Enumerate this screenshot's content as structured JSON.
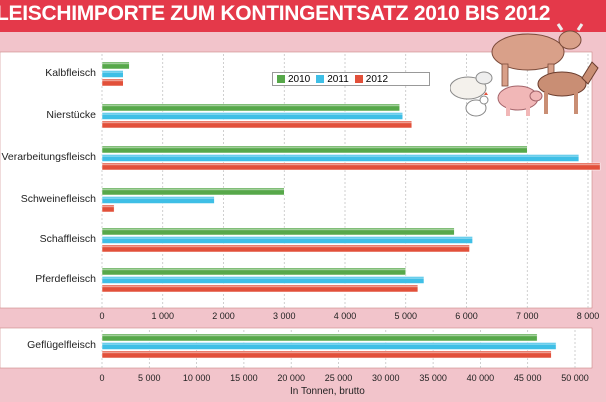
{
  "title": "LEISCHIMPORTE ZUM KONTINGENTSATZ 2010 BIS 2012",
  "unit_label": "In Tonnen, brutto",
  "colors": {
    "title_bg": "#e4394a",
    "page_bg": "#f2c4cb",
    "panel_bg": "#ffffff",
    "s2010": "#57a84a",
    "s2011": "#3fbfe6",
    "s2012": "#e2503a"
  },
  "icons": [
    "cow-icon",
    "sheep-icon",
    "pig-icon",
    "horse-icon",
    "chicken-icon"
  ],
  "chart_data": [
    {
      "type": "bar",
      "orientation": "horizontal",
      "categories": [
        "Kalbfleisch",
        "Nierstücke",
        "Verarbeitungsfleisch",
        "Schweinefleisch",
        "Schaffleisch",
        "Pferdefleisch"
      ],
      "series": [
        {
          "name": "2010",
          "values": [
            450,
            4900,
            7000,
            3000,
            5800,
            5000
          ]
        },
        {
          "name": "2011",
          "values": [
            350,
            4950,
            7850,
            1850,
            6100,
            5300
          ]
        },
        {
          "name": "2012",
          "values": [
            350,
            5100,
            8200,
            200,
            6050,
            5200
          ]
        }
      ],
      "xlim": [
        0,
        8000
      ],
      "xticks": [
        0,
        1000,
        2000,
        3000,
        4000,
        5000,
        6000,
        7000,
        8000
      ],
      "xtick_labels": [
        "0",
        "1 000",
        "2 000",
        "3 000",
        "4 000",
        "5 000",
        "6 000",
        "7 000",
        "8 000"
      ],
      "legend": [
        "2010",
        "2011",
        "2012"
      ],
      "legend_position": "top-center",
      "grid": true
    },
    {
      "type": "bar",
      "orientation": "horizontal",
      "categories": [
        "Geflügelfleisch"
      ],
      "series": [
        {
          "name": "2010",
          "values": [
            46000
          ]
        },
        {
          "name": "2011",
          "values": [
            48000
          ]
        },
        {
          "name": "2012",
          "values": [
            47500
          ]
        }
      ],
      "xlim": [
        0,
        50000
      ],
      "xticks": [
        0,
        5000,
        10000,
        15000,
        20000,
        25000,
        30000,
        35000,
        40000,
        45000,
        50000
      ],
      "xtick_labels": [
        "0",
        "5 000",
        "10 000",
        "15 000",
        "20 000",
        "25 000",
        "30 000",
        "35 000",
        "40 000",
        "45 000",
        "50 000"
      ],
      "xlabel": "In Tonnen, brutto",
      "grid": true
    }
  ]
}
